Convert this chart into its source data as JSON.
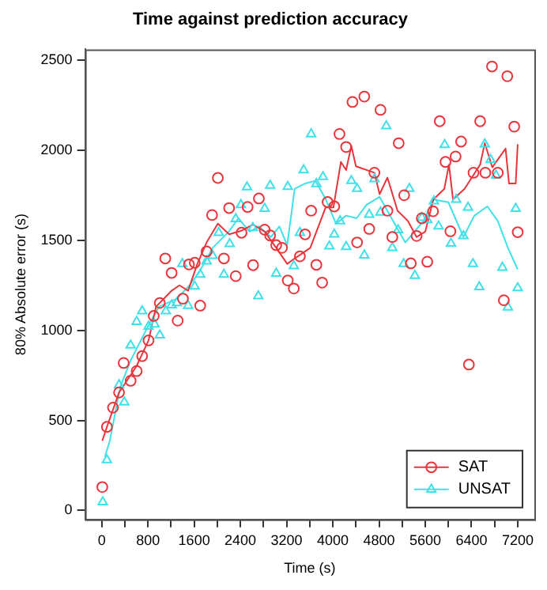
{
  "chart_data": {
    "type": "scatter",
    "title": "Time against prediction accuracy",
    "xlabel": "Time (s)",
    "ylabel": "80% Absolute error (s)",
    "xlim": [
      -288,
      7488
    ],
    "ylim": [
      -50,
      2560
    ],
    "xticks": [
      0,
      {
        "value": 400,
        "label": null
      },
      800,
      {
        "value": 1200,
        "label": null
      },
      1600,
      {
        "value": 2000,
        "label": null
      },
      2400,
      {
        "value": 2800,
        "label": null
      },
      3200,
      {
        "value": 3600,
        "label": null
      },
      4000,
      {
        "value": 4400,
        "label": null
      },
      4800,
      {
        "value": 5200,
        "label": null
      },
      5600,
      {
        "value": 6000,
        "label": null
      },
      6400,
      {
        "value": 6800,
        "label": null
      },
      7200
    ],
    "yticks": [
      0,
      500,
      1000,
      1500,
      2000,
      2500
    ],
    "grid": false,
    "legend": "bottom right",
    "series": [
      {
        "name": "SAT",
        "type": "scatter",
        "marker": "circle",
        "color": "#e8353b",
        "x": [
          10,
          90,
          195,
          300,
          380,
          500,
          605,
          700,
          810,
          900,
          1005,
          1100,
          1210,
          1315,
          1405,
          1510,
          1610,
          1705,
          1815,
          1910,
          2010,
          2115,
          2205,
          2320,
          2420,
          2525,
          2620,
          2720,
          2820,
          2915,
          3020,
          3120,
          3220,
          3325,
          3430,
          3520,
          3625,
          3715,
          3815,
          3910,
          4025,
          4115,
          4230,
          4340,
          4420,
          4545,
          4630,
          4720,
          4825,
          4945,
          5030,
          5140,
          5235,
          5350,
          5450,
          5540,
          5635,
          5735,
          5850,
          5950,
          6035,
          6125,
          6220,
          6355,
          6435,
          6550,
          6640,
          6755,
          6855,
          6960,
          7020,
          7140,
          7200
        ],
        "values": [
          130,
          464,
          571,
          655,
          819,
          720,
          774,
          857,
          944,
          1080,
          1152,
          1399,
          1319,
          1054,
          1176,
          1366,
          1375,
          1137,
          1438,
          1640,
          1846,
          1399,
          1679,
          1301,
          1542,
          1685,
          1362,
          1732,
          1559,
          1527,
          1473,
          1458,
          1277,
          1232,
          1411,
          1533,
          1664,
          1364,
          1265,
          1712,
          1688,
          2090,
          2018,
          2268,
          1488,
          2298,
          1563,
          1875,
          2224,
          1664,
          1518,
          2039,
          1750,
          1372,
          1524,
          1622,
          1381,
          1661,
          2161,
          1935,
          1550,
          1965,
          2048,
          810,
          1875,
          2161,
          1875,
          2465,
          1875,
          1167,
          2411,
          2131,
          1545
        ]
      },
      {
        "name": "UNSAT",
        "type": "scatter",
        "marker": "triangle",
        "color": "#3fe0e8",
        "x": [
          18,
          90,
          300,
          390,
          500,
          605,
          700,
          810,
          915,
          1005,
          1110,
          1210,
          1300,
          1395,
          1495,
          1610,
          1705,
          1815,
          1920,
          2025,
          2115,
          2215,
          2320,
          2410,
          2515,
          2615,
          2710,
          2820,
          2915,
          3020,
          3220,
          3325,
          3430,
          3495,
          3625,
          3715,
          3830,
          3940,
          4025,
          4125,
          4230,
          4320,
          4420,
          4545,
          4630,
          4720,
          4825,
          4925,
          5030,
          5130,
          5225,
          5325,
          5420,
          5540,
          5635,
          5750,
          5830,
          5935,
          6045,
          6135,
          6260,
          6340,
          6425,
          6535,
          6630,
          6730,
          6825,
          6935,
          7030,
          7165,
          7200
        ],
        "values": [
          47,
          280,
          697,
          601,
          917,
          1048,
          1107,
          1021,
          1033,
          973,
          1107,
          1140,
          1152,
          1369,
          1137,
          1244,
          1310,
          1384,
          1414,
          1542,
          1310,
          1480,
          1619,
          1697,
          1795,
          1569,
          1190,
          1676,
          1804,
          1316,
          1797,
          1357,
          1542,
          1890,
          2090,
          1813,
          1852,
          1467,
          1533,
          1607,
          1464,
          1830,
          1786,
          1417,
          1643,
          1840,
          1655,
          2134,
          1458,
          1557,
          1369,
          1786,
          1304,
          1625,
          1613,
          1717,
          1578,
          2030,
          1482,
          1726,
          1524,
          1682,
          1369,
          1241,
          2033,
          1947,
          1860,
          1349,
          1128,
          1676,
          1235
        ]
      },
      {
        "type": "line",
        "color": "#e8353b",
        "x": [
          10,
          90,
          300,
          600,
          810,
          940,
          1210,
          1345,
          1495,
          1655,
          1815,
          2010,
          2205,
          2420,
          2620,
          2820,
          3020,
          3210,
          3340,
          3610,
          3875,
          4010,
          4140,
          4230,
          4320,
          4400,
          4720,
          4810,
          4945,
          5120,
          5300,
          5450,
          5600,
          5740,
          5930,
          6010,
          6080,
          6280,
          6550,
          6630,
          6760,
          6990,
          7050,
          7165,
          7200
        ],
        "values": [
          387,
          464,
          655,
          800,
          944,
          1131,
          1220,
          1250,
          1220,
          1369,
          1488,
          1592,
          1533,
          1553,
          1587,
          1548,
          1458,
          1369,
          1399,
          1458,
          1682,
          1682,
          1935,
          1890,
          2024,
          1911,
          1875,
          1756,
          1848,
          1664,
          1607,
          1518,
          1548,
          1726,
          1786,
          1920,
          1726,
          1786,
          1920,
          2039,
          1905,
          2009,
          1815,
          1815,
          2033
        ]
      },
      {
        "type": "line",
        "color": "#3fe0e8",
        "x": [
          55,
          140,
          320,
          500,
          810,
          990,
          1300,
          1520,
          1690,
          1920,
          2200,
          2365,
          2560,
          2720,
          2930,
          3075,
          3210,
          3340,
          3520,
          3700,
          3880,
          4055,
          4230,
          4410,
          4585,
          4810,
          4990,
          5255,
          5570,
          5740,
          6000,
          6260,
          6450,
          6675,
          6855,
          7030,
          7200
        ],
        "values": [
          298,
          387,
          685,
          833,
          1027,
          1131,
          1176,
          1250,
          1325,
          1458,
          1548,
          1622,
          1548,
          1577,
          1518,
          1577,
          1473,
          1786,
          1815,
          1830,
          1726,
          1592,
          1637,
          1622,
          1697,
          1741,
          1637,
          1488,
          1607,
          1726,
          1711,
          1518,
          1637,
          1688,
          1607,
          1458,
          1339
        ]
      }
    ]
  }
}
